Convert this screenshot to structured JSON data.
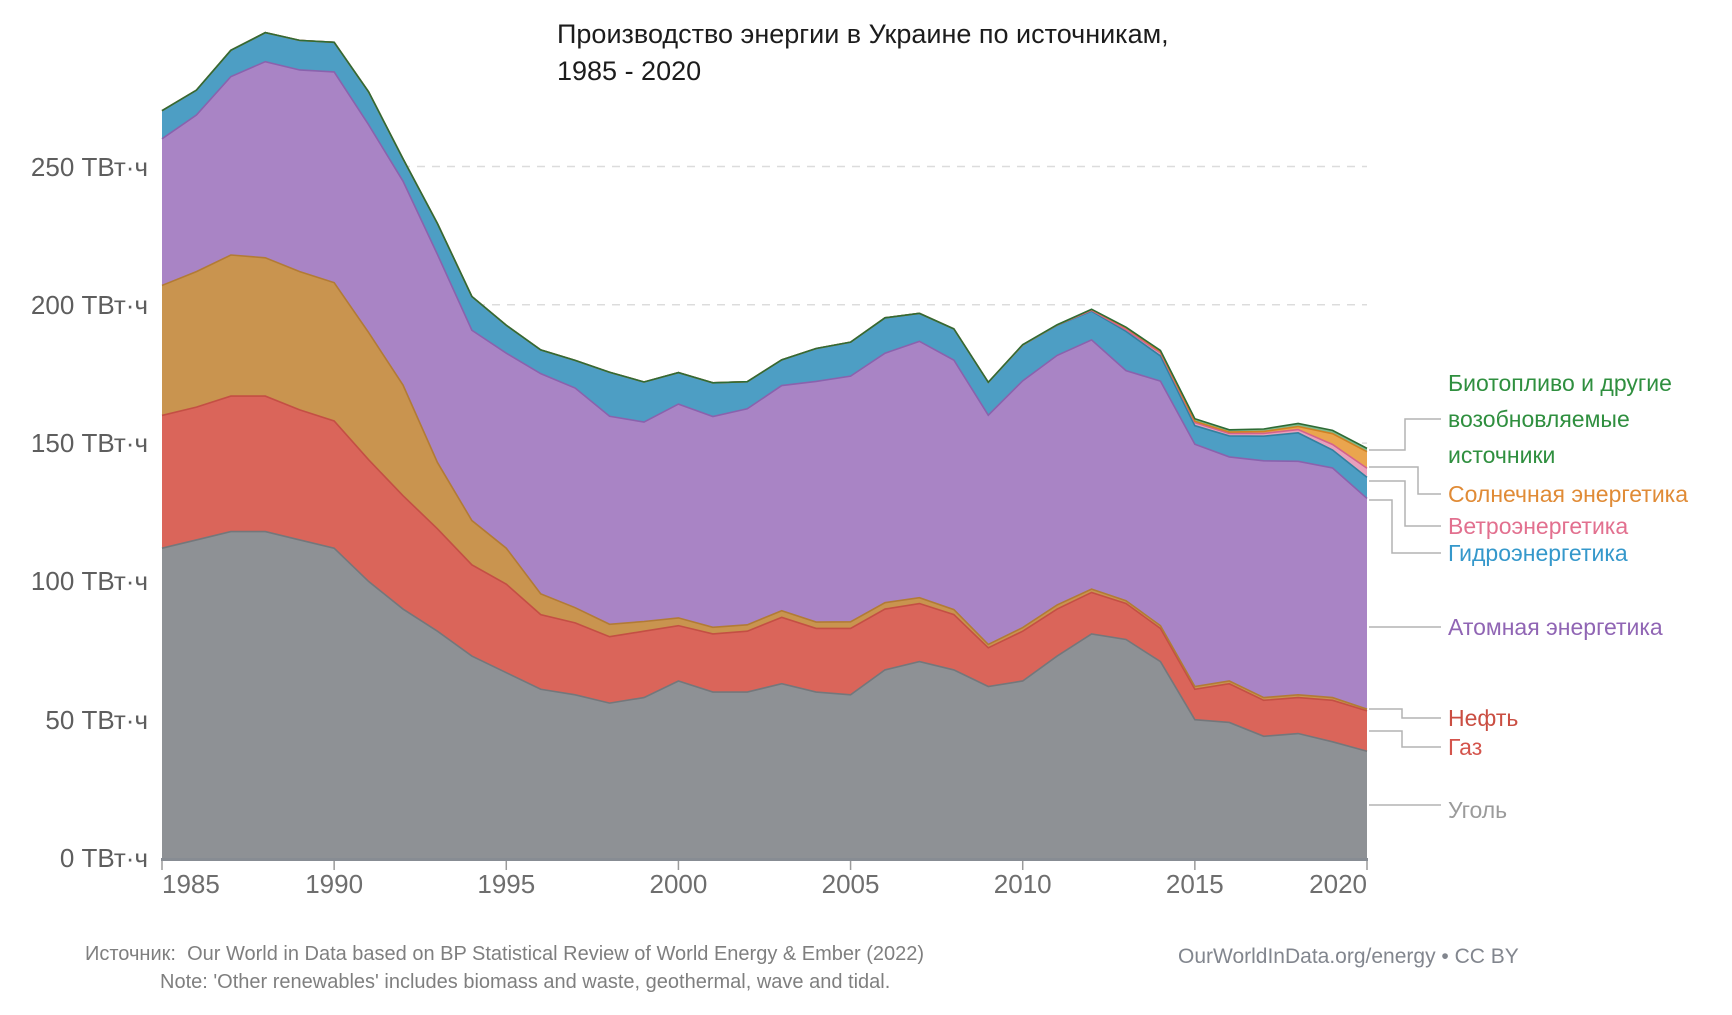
{
  "title": {
    "line1": "Производство энергии в Украине по источникам,",
    "line2": "1985 - 2020"
  },
  "y_axis": {
    "unit": "ТВт·ч",
    "tick_labels": [
      "0 ТВт·ч",
      "50 ТВт·ч",
      "100 ТВт·ч",
      "150 ТВт·ч",
      "200 ТВт·ч",
      "250 ТВт·ч"
    ],
    "tick_values": [
      0,
      50,
      100,
      150,
      200,
      250
    ]
  },
  "x_axis": {
    "tick_labels": [
      "1985",
      "1990",
      "1995",
      "2000",
      "2005",
      "2010",
      "2015",
      "2020"
    ],
    "tick_values": [
      1985,
      1990,
      1995,
      2000,
      2005,
      2010,
      2015,
      2020
    ]
  },
  "legend": [
    {
      "id": "bio",
      "lines": [
        "Биотопливо и другие",
        "возобновляемые",
        "источники"
      ],
      "color": "#2f8f3f"
    },
    {
      "id": "solar",
      "lines": [
        "Солнечная энергетика"
      ],
      "color": "#e08b36"
    },
    {
      "id": "wind",
      "lines": [
        "Ветроэнергетика"
      ],
      "color": "#e2708f"
    },
    {
      "id": "hydro",
      "lines": [
        "Гидроэнергетика"
      ],
      "color": "#3598cb"
    },
    {
      "id": "nuclear",
      "lines": [
        "Атомная энергетика"
      ],
      "color": "#9065b4"
    },
    {
      "id": "oil",
      "lines": [
        "Нефть"
      ],
      "color": "#ca4e42"
    },
    {
      "id": "gas",
      "lines": [
        "Газ"
      ],
      "color": "#d4544c"
    },
    {
      "id": "coal",
      "lines": [
        "Уголь"
      ],
      "color": "#9b9b9b"
    }
  ],
  "footer": {
    "source_prefix": "Источник:",
    "source_text": "Our World in Data based on BP Statistical Review of World Energy & Ember (2022)",
    "note_text": "Note: 'Other renewables' includes biomass and waste, geothermal, wave and tidal.",
    "credit": "OurWorldInData.org/energy • CC BY"
  },
  "chart_data": {
    "type": "area",
    "stacked": true,
    "title": "Производство энергии в Украине по источникам, 1985 - 2020",
    "ylabel": "ТВт·ч",
    "ylim": [
      0,
      300
    ],
    "xlim": [
      1985,
      2020
    ],
    "grid": "dashed-horizontal",
    "legend_position": "right-annotated",
    "x": [
      1985,
      1986,
      1987,
      1988,
      1989,
      1990,
      1991,
      1992,
      1993,
      1994,
      1995,
      1996,
      1997,
      1998,
      1999,
      2000,
      2001,
      2002,
      2003,
      2004,
      2005,
      2006,
      2007,
      2008,
      2009,
      2010,
      2011,
      2012,
      2013,
      2014,
      2015,
      2016,
      2017,
      2018,
      2019,
      2020
    ],
    "series": [
      {
        "id": "coal",
        "name": "Уголь",
        "fill": "#8e9195",
        "line": "#74777b",
        "values": [
          112,
          115,
          118,
          118,
          115,
          112,
          100,
          90,
          82,
          73,
          67,
          61,
          59,
          56,
          58,
          64,
          60,
          60,
          63,
          60,
          59,
          68,
          71,
          68,
          62,
          64,
          73,
          81,
          79,
          71,
          50,
          49,
          44,
          45,
          42,
          38.6
        ]
      },
      {
        "id": "gas",
        "name": "Газ",
        "fill": "#da655a",
        "line": "#c44f44",
        "values": [
          48,
          48,
          49,
          49,
          47,
          46,
          44,
          41,
          37,
          33,
          32,
          27,
          26,
          24,
          24,
          20,
          21,
          22,
          24,
          23,
          24,
          22,
          21,
          20,
          14,
          18,
          17,
          15,
          13,
          12,
          11,
          14,
          13,
          13,
          15,
          14.6
        ]
      },
      {
        "id": "oil",
        "name": "Нефть",
        "fill": "#c9944f",
        "line": "#b27b35",
        "values": [
          47,
          49,
          51,
          50,
          50,
          50,
          46,
          40,
          24,
          16,
          13,
          7.5,
          5.5,
          4.5,
          3.5,
          2.8,
          2.4,
          2.3,
          2.4,
          2.3,
          2.4,
          2.3,
          2.1,
          1.8,
          1.2,
          1.3,
          1.5,
          1.2,
          1,
          1,
          1,
          1,
          1,
          1,
          1,
          0.6
        ]
      },
      {
        "id": "nuclear",
        "name": "Атомная энергетика",
        "fill": "#a984c5",
        "line": "#8a62ad",
        "values": [
          53,
          56.6,
          64.5,
          70.9,
          72.9,
          76.2,
          75.1,
          73.7,
          75.2,
          68.8,
          70.5,
          79.6,
          79.4,
          75.2,
          72.1,
          77.3,
          76.2,
          78.1,
          81.4,
          87,
          88.8,
          90.2,
          92.7,
          90.2,
          82.9,
          89.2,
          90.2,
          90.1,
          83.2,
          88.4,
          87.6,
          81,
          85.6,
          84.4,
          83,
          76.2
        ]
      },
      {
        "id": "hydro",
        "name": "Гидроэнергетика",
        "fill": "#4d9ec4",
        "line": "#33809f",
        "values": [
          10.2,
          9,
          9.5,
          10.5,
          10.7,
          10.7,
          11.9,
          8.1,
          11.2,
          12.2,
          10.1,
          8.6,
          10,
          15.9,
          14.5,
          11.4,
          12.2,
          9.8,
          9.3,
          11.9,
          12.3,
          12.8,
          10.1,
          11.3,
          11.9,
          13,
          10.9,
          10.4,
          14.2,
          9.1,
          6.7,
          7.6,
          8.9,
          10.3,
          6.5,
          7.6
        ]
      },
      {
        "id": "wind",
        "name": "Ветроэнергетика",
        "fill": "#e8a0bc",
        "line": "#d4628c",
        "values": [
          0,
          0,
          0,
          0,
          0,
          0,
          0,
          0,
          0,
          0,
          0,
          0,
          0,
          0,
          0,
          0,
          0,
          0,
          0,
          0,
          0,
          0,
          0,
          0,
          0,
          0,
          0.1,
          0.3,
          0.6,
          1.1,
          1.1,
          0.9,
          1,
          1.2,
          2,
          3.3
        ]
      },
      {
        "id": "solar",
        "name": "Солнечная энергетика",
        "fill": "#eaa54e",
        "line": "#d08124",
        "values": [
          0,
          0,
          0,
          0,
          0,
          0,
          0,
          0,
          0,
          0,
          0,
          0,
          0,
          0,
          0,
          0,
          0,
          0,
          0,
          0,
          0,
          0,
          0,
          0,
          0,
          0,
          0,
          0.3,
          0.7,
          0.5,
          0.5,
          0.5,
          0.7,
          1.1,
          3.9,
          6
        ]
      },
      {
        "id": "bio",
        "name": "Биотопливо и другие возобновляемые источники",
        "fill": "#7fb98a",
        "line": "#2e6b35",
        "values": [
          0,
          0,
          0,
          0,
          0,
          0,
          0,
          0,
          0,
          0,
          0,
          0,
          0,
          0,
          0,
          0,
          0,
          0,
          0,
          0,
          0,
          0,
          0,
          0,
          0,
          0.1,
          0.1,
          0.1,
          0.2,
          0.4,
          0.9,
          0.8,
          0.9,
          1.1,
          1.2,
          1.2
        ]
      }
    ]
  }
}
